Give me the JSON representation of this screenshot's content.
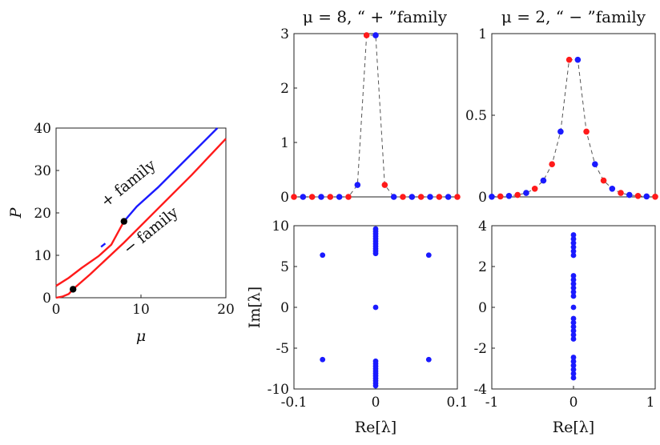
{
  "chart_data": [
    {
      "type": "line",
      "id": "bifurcation",
      "xlabel": "μ",
      "ylabel": "P",
      "xlim": [
        0,
        20
      ],
      "ylim": [
        0,
        40
      ],
      "xticks": [
        "0",
        "10",
        "20"
      ],
      "yticks": [
        "0",
        "10",
        "20",
        "30",
        "40"
      ],
      "series": [
        {
          "name": "+ family",
          "color_stable": "#1a1aff",
          "color_unstable": "#ff1a1a",
          "x": [
            0,
            1.5,
            3,
            5,
            6.5,
            8,
            9.5,
            12,
            15,
            19
          ],
          "y": [
            2.8,
            4.7,
            7.0,
            9.8,
            12.5,
            18.0,
            21.5,
            26.0,
            32.0,
            40.0
          ],
          "stable_from_mu": 8.0
        },
        {
          "name": "− family",
          "color": "#ff1a1a",
          "x": [
            0,
            0.8,
            1.5,
            2,
            4,
            8,
            12,
            16,
            20
          ],
          "y": [
            0,
            0.3,
            0.9,
            2.0,
            5.5,
            13.0,
            21.0,
            29.0,
            37.5
          ]
        }
      ],
      "markers": [
        {
          "mu": 8,
          "P": 18
        },
        {
          "mu": 2,
          "P": 2
        }
      ],
      "annotations": [
        "+ family",
        "− family"
      ]
    },
    {
      "type": "scatter",
      "id": "profile_plus",
      "title": "μ = 8, “ + ”family",
      "ylim": [
        0,
        3
      ],
      "yticks": [
        "0",
        "1",
        "2",
        "3"
      ],
      "points": [
        {
          "y": 0,
          "c": "red"
        },
        {
          "y": 0,
          "c": "blue"
        },
        {
          "y": 0,
          "c": "red"
        },
        {
          "y": 0,
          "c": "blue"
        },
        {
          "y": 0,
          "c": "red"
        },
        {
          "y": 0,
          "c": "blue"
        },
        {
          "y": 0,
          "c": "red"
        },
        {
          "y": 0.22,
          "c": "blue"
        },
        {
          "y": 2.97,
          "c": "red"
        },
        {
          "y": 2.97,
          "c": "blue"
        },
        {
          "y": 0.22,
          "c": "red"
        },
        {
          "y": 0,
          "c": "blue"
        },
        {
          "y": 0,
          "c": "red"
        },
        {
          "y": 0,
          "c": "blue"
        },
        {
          "y": 0,
          "c": "red"
        },
        {
          "y": 0,
          "c": "blue"
        },
        {
          "y": 0,
          "c": "red"
        },
        {
          "y": 0,
          "c": "blue"
        },
        {
          "y": 0,
          "c": "red"
        }
      ]
    },
    {
      "type": "scatter",
      "id": "profile_minus",
      "title": "μ = 2, “ − ”family",
      "ylim": [
        0,
        1
      ],
      "yticks": [
        "0",
        "0.5",
        "1"
      ],
      "points": [
        {
          "y": 0.001,
          "c": "blue"
        },
        {
          "y": 0.003,
          "c": "red"
        },
        {
          "y": 0.006,
          "c": "blue"
        },
        {
          "y": 0.012,
          "c": "red"
        },
        {
          "y": 0.024,
          "c": "blue"
        },
        {
          "y": 0.05,
          "c": "red"
        },
        {
          "y": 0.1,
          "c": "blue"
        },
        {
          "y": 0.2,
          "c": "red"
        },
        {
          "y": 0.4,
          "c": "blue"
        },
        {
          "y": 0.84,
          "c": "red"
        },
        {
          "y": 0.84,
          "c": "blue"
        },
        {
          "y": 0.4,
          "c": "red"
        },
        {
          "y": 0.2,
          "c": "blue"
        },
        {
          "y": 0.1,
          "c": "red"
        },
        {
          "y": 0.05,
          "c": "blue"
        },
        {
          "y": 0.024,
          "c": "red"
        },
        {
          "y": 0.012,
          "c": "blue"
        },
        {
          "y": 0.006,
          "c": "red"
        },
        {
          "y": 0.003,
          "c": "blue"
        },
        {
          "y": 0.001,
          "c": "red"
        }
      ]
    },
    {
      "type": "scatter",
      "id": "spectrum_plus",
      "xlabel": "Re[λ]",
      "ylabel": "Im[λ]",
      "xlim": [
        -0.1,
        0.1
      ],
      "ylim": [
        -10,
        10
      ],
      "xticks": [
        "-0.1",
        "0",
        "0.1"
      ],
      "yticks": [
        "10",
        "5",
        "0",
        "-5",
        "-10"
      ],
      "points": [
        [
          -0.065,
          6.4
        ],
        [
          0.065,
          6.4
        ],
        [
          -0.065,
          -6.4
        ],
        [
          0.065,
          -6.4
        ],
        [
          0,
          0
        ],
        [
          0,
          9.6
        ],
        [
          0,
          9.3
        ],
        [
          0,
          9.0
        ],
        [
          0,
          8.7
        ],
        [
          0,
          8.4
        ],
        [
          0,
          8.1
        ],
        [
          0,
          7.8
        ],
        [
          0,
          7.5
        ],
        [
          0,
          7.2
        ],
        [
          0,
          6.9
        ],
        [
          0,
          6.6
        ],
        [
          0,
          -6.6
        ],
        [
          0,
          -6.9
        ],
        [
          0,
          -7.2
        ],
        [
          0,
          -7.5
        ],
        [
          0,
          -7.8
        ],
        [
          0,
          -8.1
        ],
        [
          0,
          -8.4
        ],
        [
          0,
          -8.7
        ],
        [
          0,
          -9.0
        ],
        [
          0,
          -9.3
        ],
        [
          0,
          -9.6
        ]
      ]
    },
    {
      "type": "scatter",
      "id": "spectrum_minus",
      "xlabel": "Re[λ]",
      "xlim": [
        -1,
        1
      ],
      "ylim": [
        -4,
        4
      ],
      "xticks": [
        "-1",
        "0",
        "1"
      ],
      "yticks": [
        "4",
        "2",
        "0",
        "-2",
        "-4"
      ],
      "points": [
        [
          0,
          3.55
        ],
        [
          0,
          3.35
        ],
        [
          0,
          3.15
        ],
        [
          0,
          2.95
        ],
        [
          0,
          2.75
        ],
        [
          0,
          2.55
        ],
        [
          0,
          1.55
        ],
        [
          0,
          1.35
        ],
        [
          0,
          1.15
        ],
        [
          0,
          0.95
        ],
        [
          0,
          0.75
        ],
        [
          0,
          0.55
        ],
        [
          0,
          0
        ],
        [
          0,
          -0.55
        ],
        [
          0,
          -0.75
        ],
        [
          0,
          -0.95
        ],
        [
          0,
          -1.15
        ],
        [
          0,
          -1.35
        ],
        [
          0,
          -1.55
        ],
        [
          0,
          -2.45
        ],
        [
          0,
          -2.65
        ],
        [
          0,
          -2.85
        ],
        [
          0,
          -3.05
        ],
        [
          0,
          -3.25
        ],
        [
          0,
          -3.45
        ]
      ]
    }
  ],
  "colors": {
    "red": "#ff1a1a",
    "blue": "#1a1aff",
    "black": "#000000"
  }
}
